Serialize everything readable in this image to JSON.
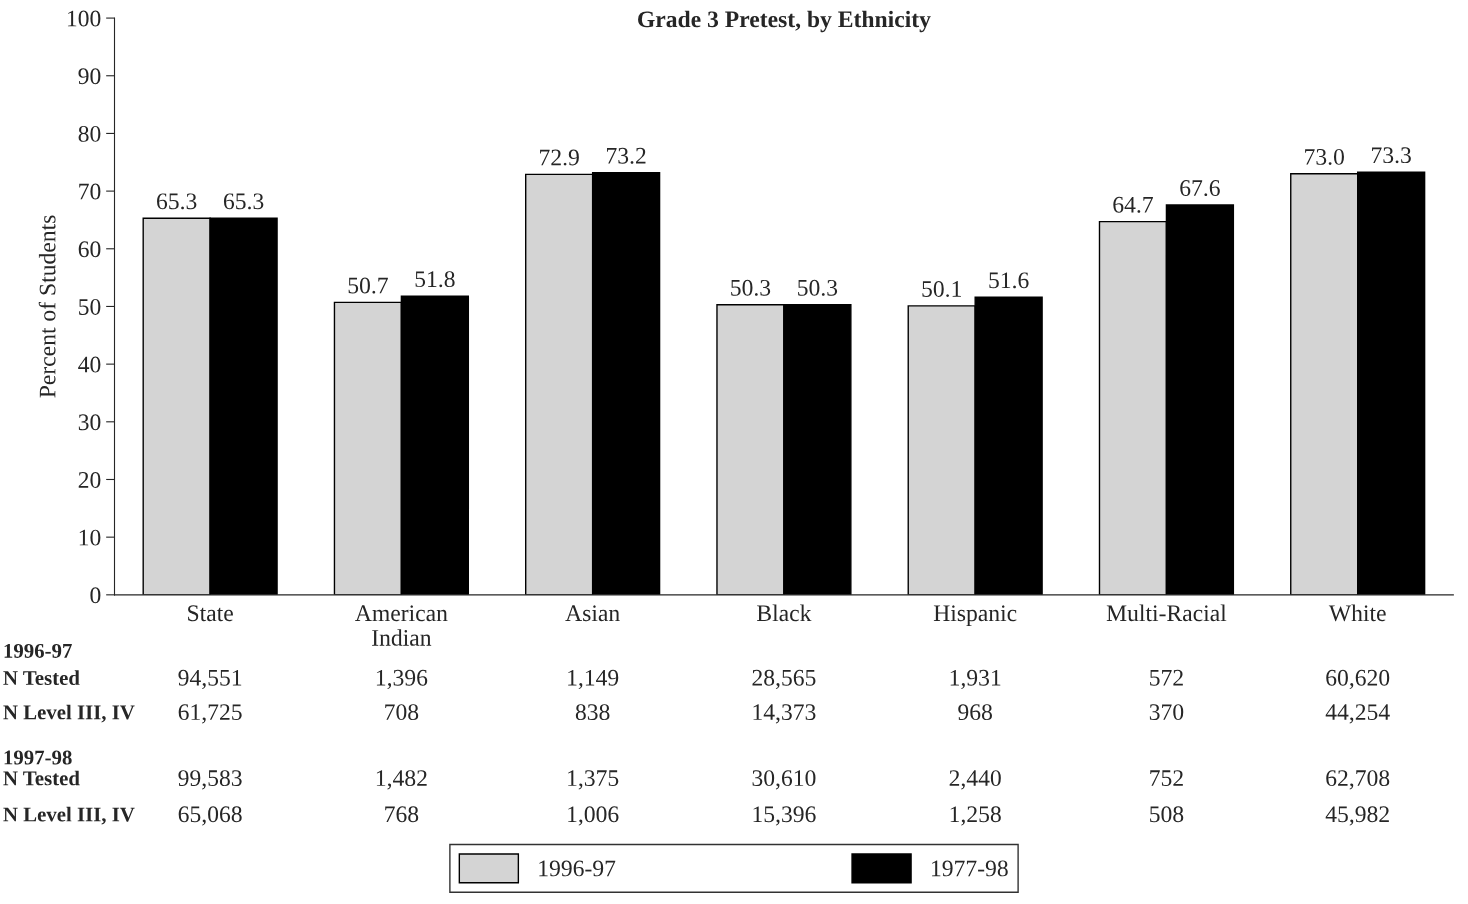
{
  "chart_data": {
    "type": "bar",
    "title": "Grade 3 Pretest, by Ethnicity",
    "ylabel": "Percent of Students",
    "categories": [
      "State",
      "American\nIndian",
      "Asian",
      "Black",
      "Hispanic",
      "Multi-Racial",
      "White"
    ],
    "series": [
      {
        "name": "1996-97",
        "color": "#d4d4d4",
        "values": [
          65.3,
          50.7,
          72.9,
          50.3,
          50.1,
          64.7,
          73.0
        ],
        "value_labels": [
          "65.3",
          "50.7",
          "72.9",
          "50.3",
          "50.1",
          "64.7",
          "73.0"
        ]
      },
      {
        "name": "1977-98",
        "color": "#000000",
        "values": [
          65.3,
          51.8,
          73.2,
          50.3,
          51.6,
          67.6,
          73.3
        ],
        "value_labels": [
          "65.3",
          "51.8",
          "73.2",
          "50.3",
          "51.6",
          "67.6",
          "73.3"
        ]
      }
    ],
    "ylim": [
      0,
      100
    ],
    "yticks": [
      0,
      10,
      20,
      30,
      40,
      50,
      60,
      70,
      80,
      90,
      100
    ],
    "grid": false,
    "legend": "bottom",
    "annotations": [
      "1996-97",
      "N Tested",
      "94,551",
      "1,396",
      "1,149",
      "28,565",
      "1,931",
      "572",
      "60,620",
      "N Level III, IV",
      "61,725",
      "708",
      "838",
      "14,373",
      "968",
      "370",
      "44,254",
      "1997-98",
      "N Tested",
      "99,583",
      "1,482",
      "1,375",
      "30,610",
      "2,440",
      "752",
      "62,708",
      "N Level III, IV",
      "65,068",
      "768",
      "1,006",
      "15,396",
      "1,258",
      "508",
      "45,982"
    ]
  }
}
